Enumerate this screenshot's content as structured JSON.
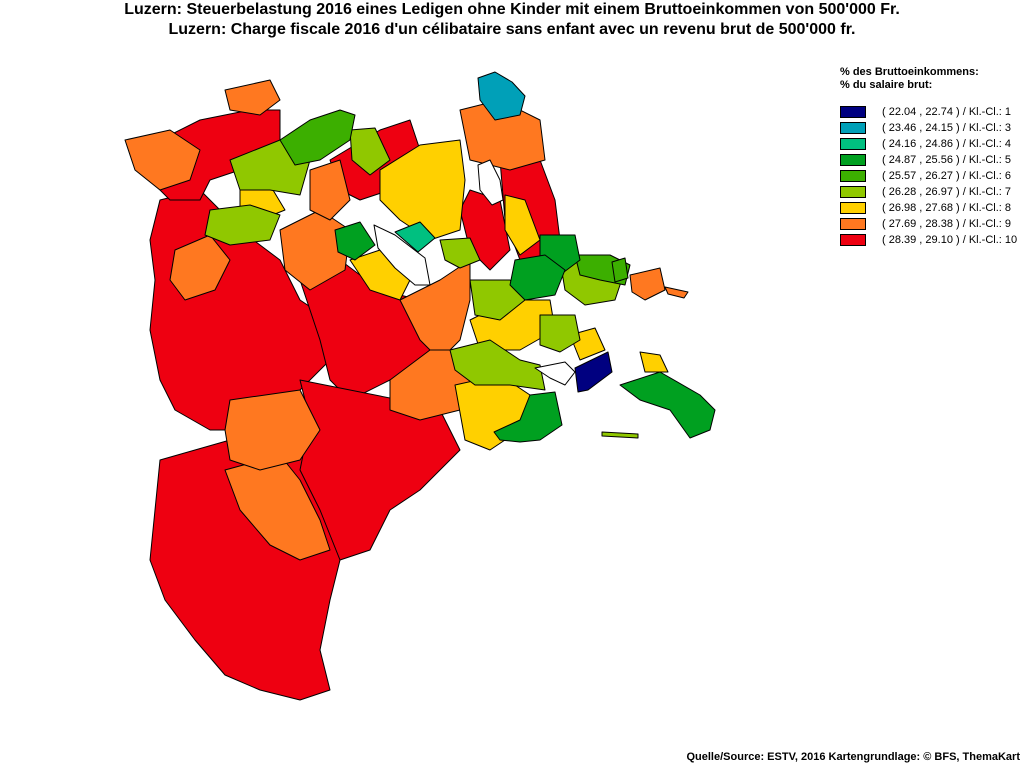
{
  "title_de": "Luzern: Steuerbelastung 2016 eines Ledigen ohne Kinder mit einem Bruttoeinkommen von 500'000 Fr.",
  "title_fr": "Luzern: Charge fiscale 2016 d'un célibataire sans enfant avec un revenu brut de 500'000 fr.",
  "legend": {
    "heading_de": "% des Bruttoeinkommens:",
    "heading_fr": "% du salaire brut:",
    "classes": [
      {
        "label": "( 22.04 , 22.74 ) / Kl.-Cl.: 1",
        "color": "#000080"
      },
      {
        "label": "( 23.46 , 24.15 ) / Kl.-Cl.: 3",
        "color": "#00a0b8"
      },
      {
        "label": "( 24.16 , 24.86 ) / Kl.-Cl.: 4",
        "color": "#00c080"
      },
      {
        "label": "( 24.87 , 25.56 ) / Kl.-Cl.: 5",
        "color": "#00a020"
      },
      {
        "label": "( 25.57 , 26.27 ) / Kl.-Cl.: 6",
        "color": "#3caf00"
      },
      {
        "label": "( 26.28 , 26.97 ) / Kl.-Cl.: 7",
        "color": "#90c800"
      },
      {
        "label": "( 26.98 , 27.68 ) / Kl.-Cl.: 8",
        "color": "#ffd000"
      },
      {
        "label": "( 27.69 , 28.38 ) / Kl.-Cl.: 9",
        "color": "#ff7820"
      },
      {
        "label": "( 28.39 , 29.10 ) / Kl.-Cl.: 10",
        "color": "#ee0011"
      }
    ]
  },
  "source": "Quelle/Source: ESTV, 2016 Kartengrundlage: © BFS, ThemaKart"
}
